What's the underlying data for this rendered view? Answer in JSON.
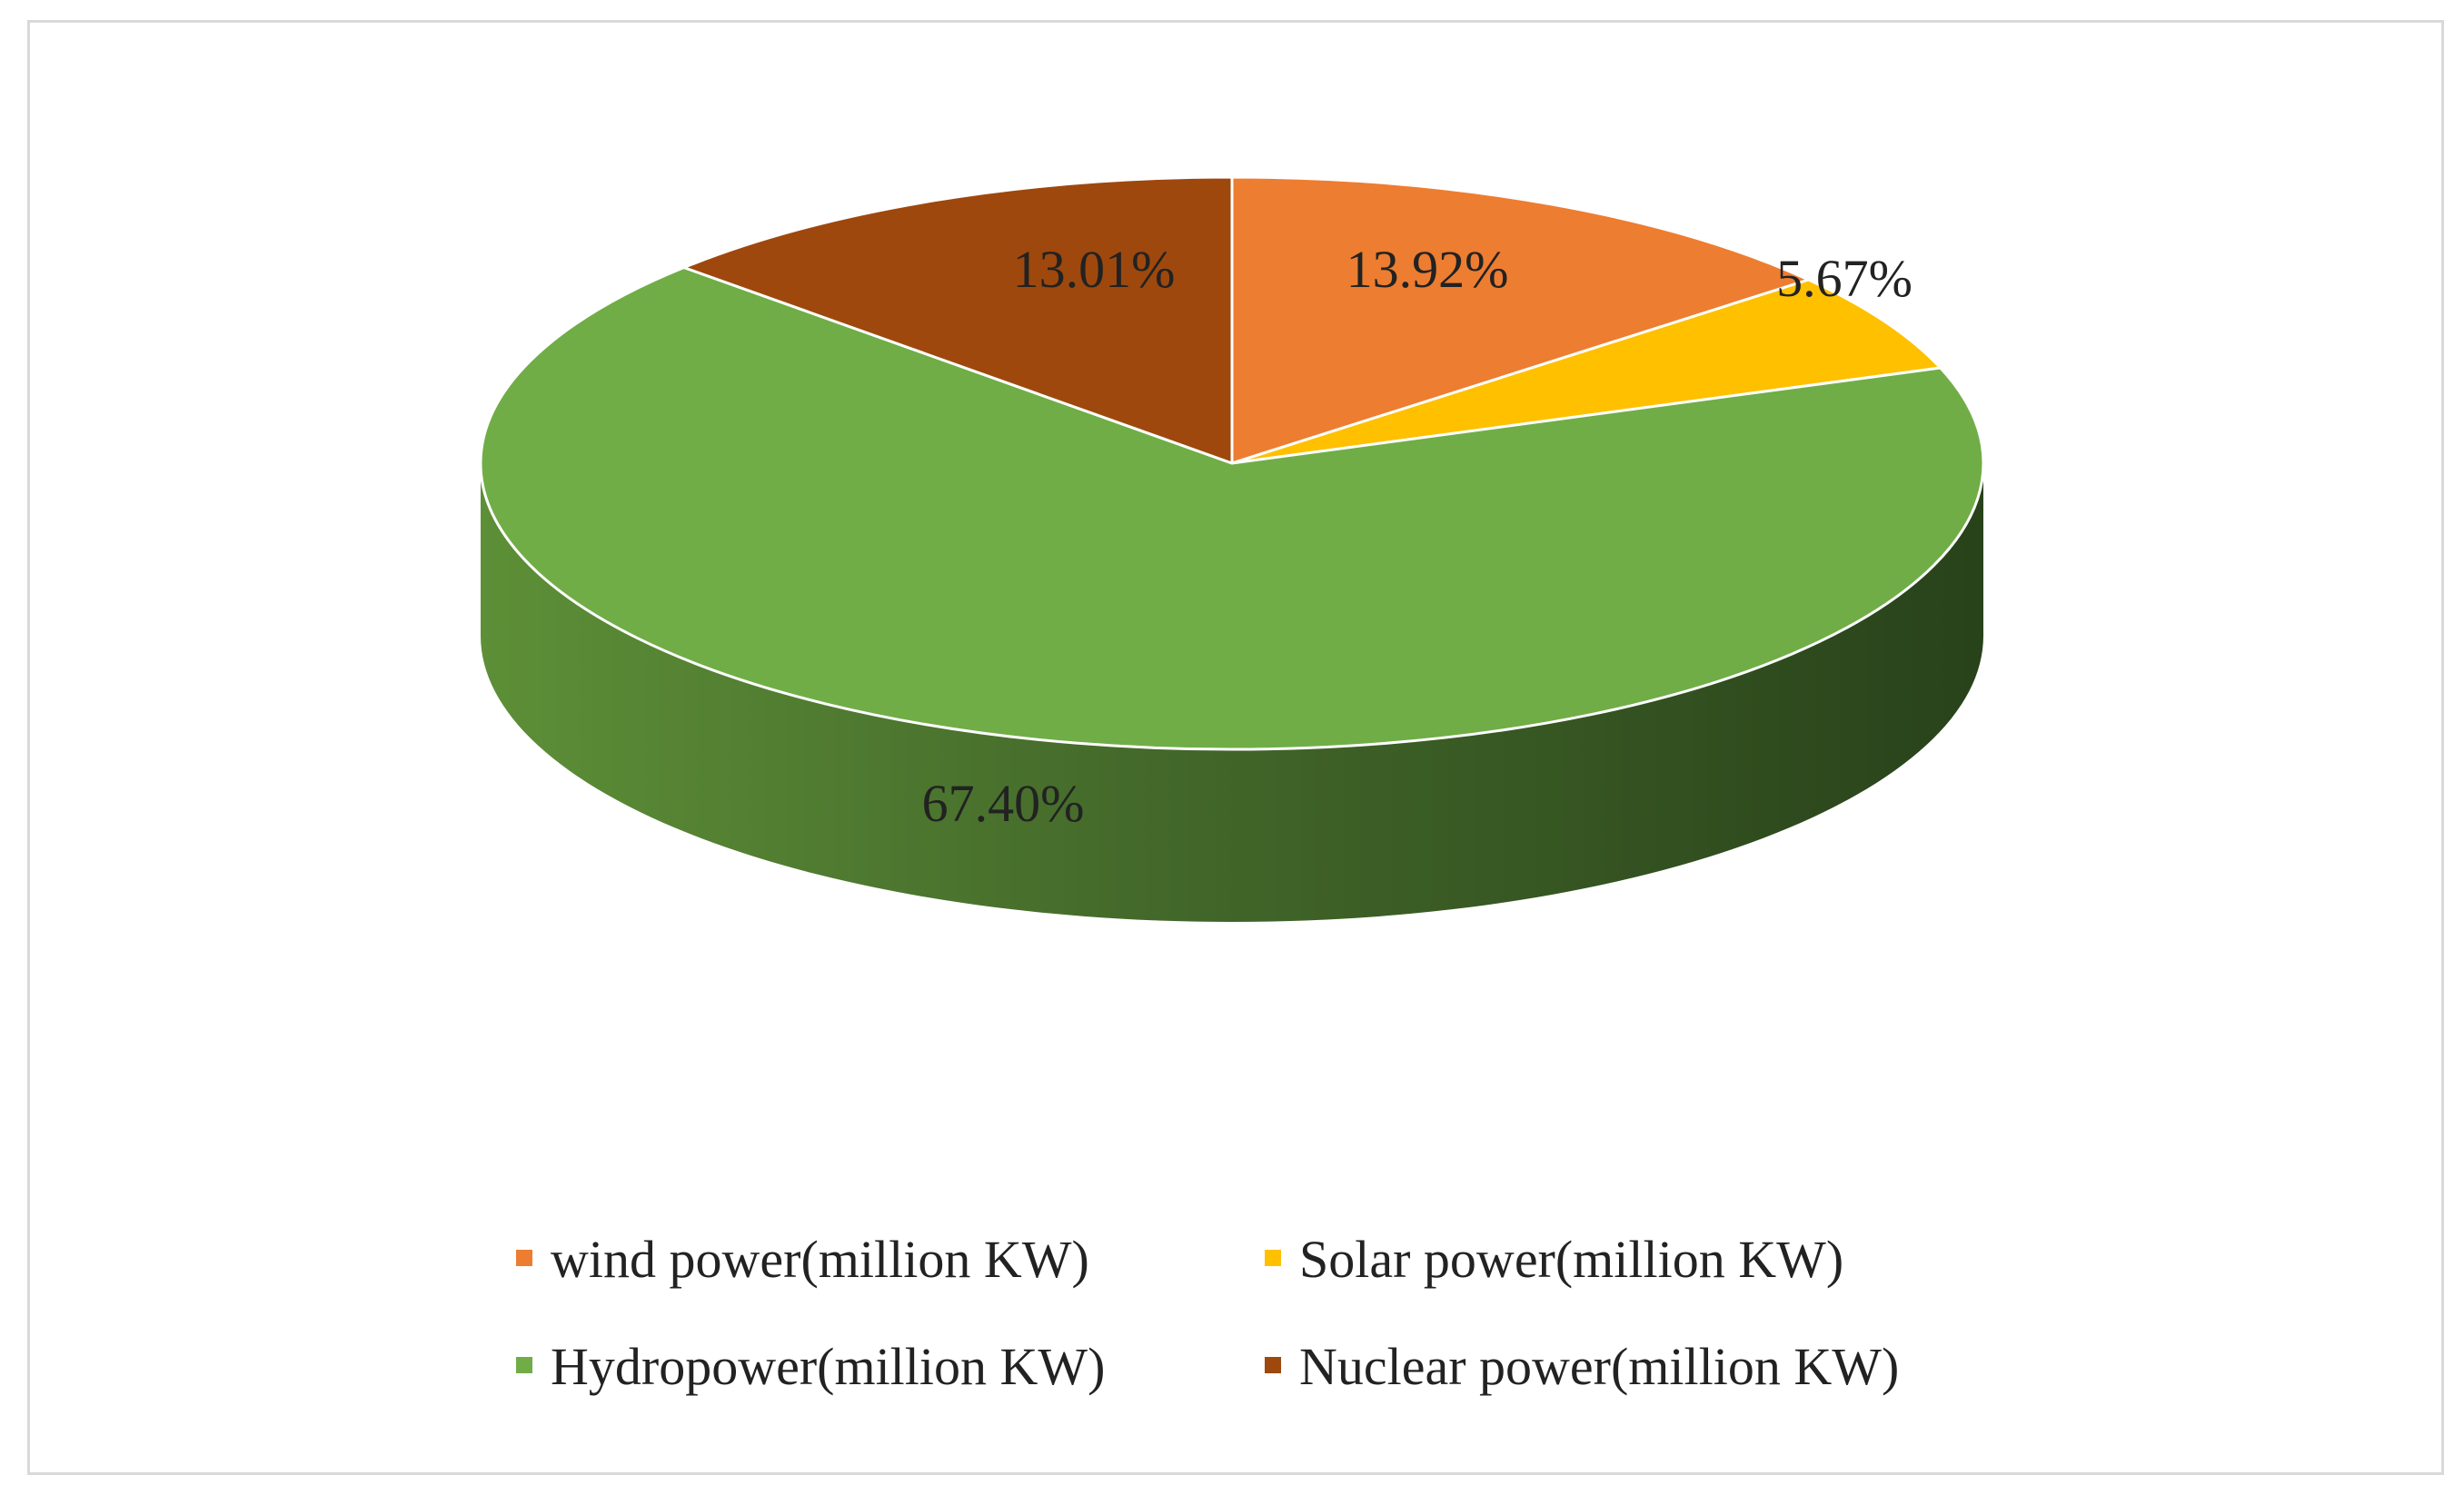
{
  "chart_data": {
    "type": "pie",
    "style": "3d",
    "title": "",
    "unit": "%",
    "slices": [
      {
        "name": "wind power(million KW)",
        "value": 13.92,
        "label": "13.92%",
        "color": "#ED7D31"
      },
      {
        "name": "Solar power(million KW)",
        "value": 5.67,
        "label": "5.67%",
        "color": "#FFC000"
      },
      {
        "name": "Hydropower(million KW)",
        "value": 67.4,
        "label": "67.40%",
        "color": "#70AD47"
      },
      {
        "name": "Nuclear power(million KW)",
        "value": 13.01,
        "label": "13.01%",
        "color": "#9E480E"
      }
    ],
    "legend_position": "bottom"
  }
}
